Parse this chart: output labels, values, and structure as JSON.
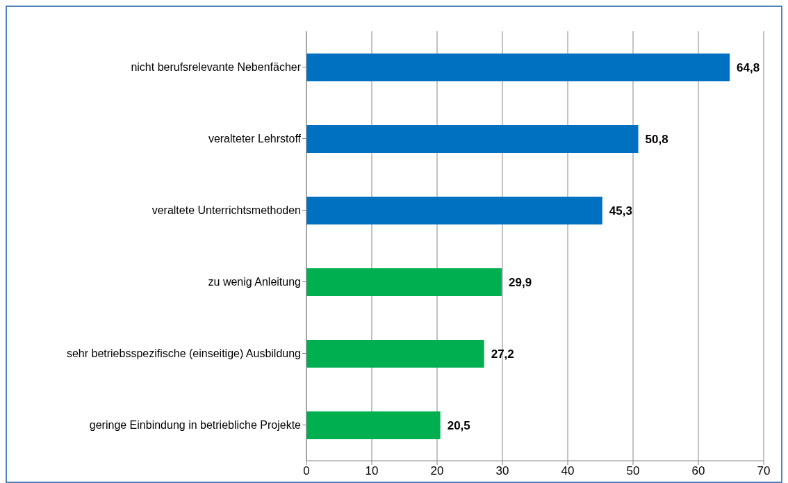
{
  "chart_data": {
    "type": "bar",
    "orientation": "horizontal",
    "categories": [
      "nicht berufsrelevante Nebenfächer",
      "veralteter Lehrstoff",
      "veraltete Unterrichtsmethoden",
      "zu wenig Anleitung",
      "sehr betriebsspezifische (einseitige) Ausbildung",
      "geringe Einbindung in betriebliche Projekte"
    ],
    "values": [
      64.8,
      50.8,
      45.3,
      29.9,
      27.2,
      20.5
    ],
    "colors": [
      "#0070c0",
      "#0070c0",
      "#0070c0",
      "#00b050",
      "#00b050",
      "#00b050"
    ],
    "value_labels": [
      "64,8",
      "50,8",
      "45,3",
      "29,9",
      "27,2",
      "20,5"
    ],
    "xlim": [
      0,
      70
    ],
    "xticks": [
      0,
      10,
      20,
      30,
      40,
      50,
      60,
      70
    ],
    "grid": "x"
  }
}
